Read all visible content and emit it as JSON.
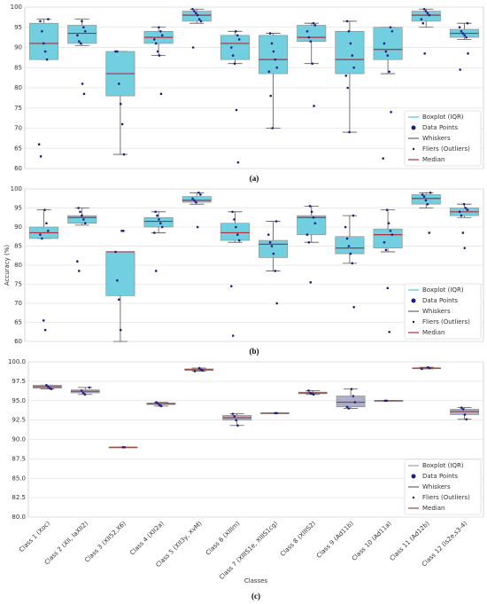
{
  "chart_data": [
    {
      "type": "box",
      "label": "(a)",
      "ylim": [
        60,
        100
      ],
      "yticks": [
        60,
        65,
        70,
        75,
        80,
        85,
        90,
        95,
        100
      ],
      "grid": true,
      "color": "#72cfe0",
      "median_color": "#b22c3c",
      "point_color": "#1c1c8a",
      "legend_position": "lower right",
      "legend": [
        "Boxplot (IQR)",
        "Data Points",
        "Whiskers",
        "Fliers (Outliers)",
        "Median"
      ],
      "boxes": [
        {
          "whislo": 87,
          "q1": 87,
          "med": 91,
          "q3": 96,
          "whishi": 97,
          "points": [
            97,
            96.5,
            94,
            91,
            89,
            87,
            66,
            63
          ]
        },
        {
          "whislo": 90.5,
          "q1": 91,
          "med": 93.5,
          "q3": 95.5,
          "whishi": 97,
          "points": [
            96.5,
            95,
            94,
            93,
            91.5,
            91,
            81,
            78.5
          ]
        },
        {
          "whislo": 63.5,
          "q1": 78,
          "med": 83.5,
          "q3": 89,
          "whishi": 89,
          "points": [
            89,
            89,
            81,
            76,
            71,
            63.5
          ]
        },
        {
          "whislo": 88,
          "q1": 91,
          "med": 92.5,
          "q3": 94,
          "whishi": 95,
          "points": [
            95,
            94,
            93,
            92,
            91,
            89,
            88,
            78.5
          ]
        },
        {
          "whislo": 96,
          "q1": 96.5,
          "med": 98,
          "q3": 99,
          "whishi": 99.5,
          "points": [
            99.5,
            99,
            98.5,
            98,
            97,
            96.5,
            90
          ]
        },
        {
          "whislo": 86,
          "q1": 87,
          "med": 91,
          "q3": 93,
          "whishi": 94,
          "points": [
            94,
            93,
            92,
            90,
            88,
            86,
            74.5,
            61.5
          ]
        },
        {
          "whislo": 70,
          "q1": 83.5,
          "med": 87,
          "q3": 93,
          "whishi": 93.5,
          "points": [
            93.5,
            91,
            89,
            87,
            85,
            84,
            78,
            70
          ]
        },
        {
          "whislo": 86,
          "q1": 91.5,
          "med": 92.5,
          "q3": 95.5,
          "whishi": 96,
          "points": [
            96,
            95.5,
            94,
            92.5,
            91.5,
            86,
            75.5
          ]
        },
        {
          "whislo": 69,
          "q1": 83.5,
          "med": 87,
          "q3": 94,
          "whishi": 96.5,
          "points": [
            96.5,
            94,
            91,
            88,
            85,
            83,
            80,
            69
          ]
        },
        {
          "whislo": 83.5,
          "q1": 87,
          "med": 89.5,
          "q3": 95,
          "whishi": 95,
          "points": [
            95,
            94,
            91,
            89,
            88,
            84,
            74,
            62.5
          ]
        },
        {
          "whislo": 95,
          "q1": 96.5,
          "med": 98,
          "q3": 99,
          "whishi": 99.5,
          "points": [
            99.5,
            99,
            98.5,
            98,
            97,
            96,
            88.5
          ]
        },
        {
          "whislo": 92,
          "q1": 92.5,
          "med": 93.5,
          "q3": 94.5,
          "whishi": 96,
          "points": [
            96,
            95,
            94,
            93.5,
            93,
            92.5,
            88.5,
            84.5
          ]
        }
      ]
    },
    {
      "type": "box",
      "label": "(b)",
      "y_label": "Accuracy (%)",
      "ylim": [
        60,
        100
      ],
      "yticks": [
        60,
        65,
        70,
        75,
        80,
        85,
        90,
        95,
        100
      ],
      "grid": true,
      "color": "#72cfe0",
      "median_color": "#b22c3c",
      "point_color": "#1c1c8a",
      "legend_position": "lower right",
      "legend": [
        "Boxplot (IQR)",
        "Data Points",
        "Whiskers",
        "Fliers (Outliers)",
        "Median"
      ],
      "boxes": [
        {
          "whislo": 87,
          "q1": 87,
          "med": 88.5,
          "q3": 90,
          "whishi": 94.5,
          "points": [
            94.5,
            91,
            89,
            88,
            87,
            65.5,
            63
          ]
        },
        {
          "whislo": 90.5,
          "q1": 91,
          "med": 92.5,
          "q3": 93,
          "whishi": 95,
          "points": [
            95,
            94,
            93,
            92,
            91,
            81,
            78.5
          ]
        },
        {
          "whislo": 60,
          "q1": 72,
          "med": 83.5,
          "q3": 83.5,
          "whishi": 83.5,
          "points": [
            89,
            89,
            83.5,
            76,
            71,
            63
          ]
        },
        {
          "whislo": 88.5,
          "q1": 90,
          "med": 91.5,
          "q3": 92.5,
          "whishi": 94,
          "points": [
            94,
            93,
            92,
            91,
            90,
            88.5,
            78.5
          ]
        },
        {
          "whislo": 96,
          "q1": 96.5,
          "med": 97,
          "q3": 98,
          "whishi": 99,
          "points": [
            99,
            98.5,
            97.5,
            97,
            96.5,
            90
          ]
        },
        {
          "whislo": 86,
          "q1": 86.5,
          "med": 88.5,
          "q3": 91,
          "whishi": 94,
          "points": [
            94,
            92,
            90,
            88,
            86.5,
            74.5,
            61.5
          ]
        },
        {
          "whislo": 78.5,
          "q1": 82,
          "med": 85.5,
          "q3": 86.5,
          "whishi": 91.5,
          "points": [
            91.5,
            88,
            86,
            85,
            83,
            78.5,
            70
          ]
        },
        {
          "whislo": 86,
          "q1": 88,
          "med": 92.5,
          "q3": 93,
          "whishi": 95.5,
          "points": [
            95.5,
            94,
            92.5,
            91,
            88,
            86,
            75.5
          ]
        },
        {
          "whislo": 80.5,
          "q1": 83,
          "med": 84.5,
          "q3": 87.5,
          "whishi": 93,
          "points": [
            93,
            90,
            87,
            85,
            83,
            80.5,
            69
          ]
        },
        {
          "whislo": 83.5,
          "q1": 84.5,
          "med": 88,
          "q3": 89.5,
          "whishi": 94.5,
          "points": [
            94.5,
            91,
            89,
            88,
            86,
            84,
            74,
            62.5
          ]
        },
        {
          "whislo": 95,
          "q1": 96,
          "med": 97.5,
          "q3": 98.5,
          "whishi": 99,
          "points": [
            99,
            98.5,
            98,
            97,
            96,
            88.5
          ]
        },
        {
          "whislo": 92.5,
          "q1": 93,
          "med": 94,
          "q3": 95,
          "whishi": 96,
          "points": [
            96,
            95,
            94.5,
            94,
            93,
            88.5,
            84.5
          ]
        }
      ]
    },
    {
      "type": "box",
      "label": "(c)",
      "x_label": "Classes",
      "categories": [
        "Class 1 (Xoc)",
        "Class 2 (XII, IaXII2)",
        "Class 3 (XII52,X6)",
        "Class 4 (XII2a)",
        "Class 5 (XII3y, XvM)",
        "Class 6 (XIIIm)",
        "Class 7 (XIIIS1e, XIIIS1cg)",
        "Class 8 (XIIIS2)",
        "Class 9 (Ad11b)",
        "Class 10 (Ad11a)",
        "Class 11 (Ad12b)",
        "Class 12 (ls2e,s3-4)"
      ],
      "ylim": [
        80,
        100
      ],
      "yticks": [
        {
          "value": 80,
          "label": "80.0"
        },
        82.5,
        {
          "value": 85,
          "label": "85.0"
        },
        87.5,
        {
          "value": 90,
          "label": "90.0"
        },
        92.5,
        {
          "value": 95,
          "label": "95.0"
        },
        97.5,
        {
          "value": 100,
          "label": "100.0"
        }
      ],
      "grid": true,
      "color": "#aab0cc",
      "median_color": "#9a4a3a",
      "point_color": "#1c1c8a",
      "legend_position": "lower right",
      "legend": [
        "Boxplot (IQR)",
        "Data Points",
        "Whiskers",
        "Fliers (Outliers)",
        "Median"
      ],
      "boxes": [
        {
          "whislo": 96.5,
          "q1": 96.6,
          "med": 96.8,
          "q3": 97,
          "whishi": 97,
          "points": [
            97,
            96.8,
            96.6,
            96.5
          ]
        },
        {
          "whislo": 95.8,
          "q1": 96,
          "med": 96.2,
          "q3": 96.4,
          "whishi": 96.7,
          "points": [
            96.7,
            96.3,
            96,
            95.8
          ]
        },
        {
          "whislo": 89,
          "q1": 89,
          "med": 89,
          "q3": 89,
          "whishi": 89,
          "points": [
            89,
            89
          ]
        },
        {
          "whislo": 94.3,
          "q1": 94.5,
          "med": 94.6,
          "q3": 94.7,
          "whishi": 94.8,
          "points": [
            94.8,
            94.6,
            94.4,
            94.3
          ]
        },
        {
          "whislo": 98.8,
          "q1": 98.9,
          "med": 99,
          "q3": 99.1,
          "whishi": 99.2,
          "points": [
            99.2,
            99,
            98.9,
            98.8
          ]
        },
        {
          "whislo": 91.8,
          "q1": 92.5,
          "med": 92.8,
          "q3": 93.1,
          "whishi": 93.3,
          "points": [
            93.3,
            93,
            92.5,
            91.8
          ]
        },
        {
          "whislo": 93.4,
          "q1": 93.4,
          "med": 93.4,
          "q3": 93.4,
          "whishi": 93.4,
          "points": [
            93.4,
            93.4
          ]
        },
        {
          "whislo": 95.8,
          "q1": 95.9,
          "med": 96,
          "q3": 96.1,
          "whishi": 96.3,
          "points": [
            96.3,
            96,
            95.9,
            95.8
          ]
        },
        {
          "whislo": 94,
          "q1": 94.2,
          "med": 94.8,
          "q3": 95.6,
          "whishi": 96.5,
          "points": [
            96.5,
            95.6,
            94.8,
            94.2,
            94
          ]
        },
        {
          "whislo": 95,
          "q1": 95,
          "med": 95,
          "q3": 95,
          "whishi": 95,
          "points": [
            95,
            95
          ]
        },
        {
          "whislo": 99.1,
          "q1": 99.2,
          "med": 99.2,
          "q3": 99.2,
          "whishi": 99.3,
          "points": [
            99.3,
            99.2,
            99.1
          ]
        },
        {
          "whislo": 92.6,
          "q1": 93.2,
          "med": 93.6,
          "q3": 93.9,
          "whishi": 94.1,
          "points": [
            94.1,
            93.9,
            93.2,
            92.6
          ]
        }
      ]
    }
  ]
}
